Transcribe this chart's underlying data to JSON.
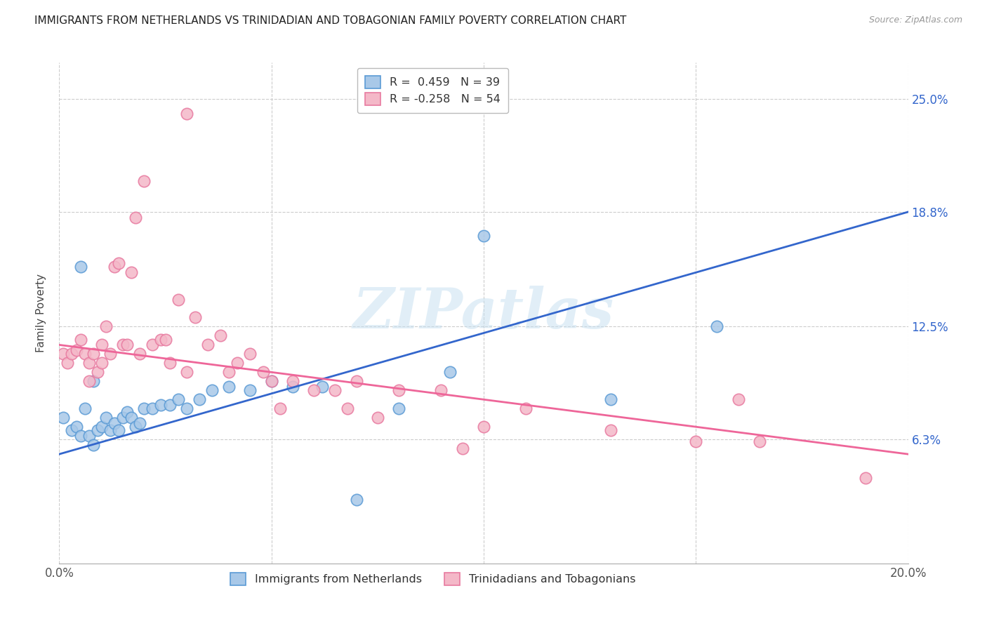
{
  "title": "IMMIGRANTS FROM NETHERLANDS VS TRINIDADIAN AND TOBAGONIAN FAMILY POVERTY CORRELATION CHART",
  "source": "Source: ZipAtlas.com",
  "ylabel": "Family Poverty",
  "xlim": [
    0.0,
    0.2
  ],
  "ylim": [
    -0.005,
    0.27
  ],
  "yticks": [
    0.063,
    0.125,
    0.188,
    0.25
  ],
  "ytick_labels": [
    "6.3%",
    "12.5%",
    "18.8%",
    "25.0%"
  ],
  "xticks": [
    0.0,
    0.05,
    0.1,
    0.15,
    0.2
  ],
  "xtick_labels": [
    "0.0%",
    "",
    "",
    "",
    "20.0%"
  ],
  "legend1_label": "R =  0.459   N = 39",
  "legend2_label": "R = -0.258   N = 54",
  "blue_color": "#a8c8e8",
  "pink_color": "#f4b8c8",
  "blue_edge_color": "#5b9bd5",
  "pink_edge_color": "#e87aa0",
  "blue_line_color": "#3366cc",
  "pink_line_color": "#ee6699",
  "watermark": "ZIPatlas",
  "blue_line_x0": 0.0,
  "blue_line_y0": 0.055,
  "blue_line_x1": 0.2,
  "blue_line_y1": 0.188,
  "pink_line_x0": 0.0,
  "pink_line_y0": 0.115,
  "pink_line_x1": 0.2,
  "pink_line_y1": 0.055,
  "blue_scatter_x": [
    0.001,
    0.003,
    0.004,
    0.005,
    0.006,
    0.007,
    0.008,
    0.009,
    0.01,
    0.011,
    0.012,
    0.013,
    0.014,
    0.015,
    0.016,
    0.017,
    0.018,
    0.019,
    0.02,
    0.022,
    0.024,
    0.026,
    0.028,
    0.03,
    0.033,
    0.036,
    0.04,
    0.045,
    0.05,
    0.055,
    0.062,
    0.07,
    0.08,
    0.092,
    0.1,
    0.13,
    0.155,
    0.005,
    0.008
  ],
  "blue_scatter_y": [
    0.075,
    0.068,
    0.07,
    0.065,
    0.08,
    0.065,
    0.06,
    0.068,
    0.07,
    0.075,
    0.068,
    0.072,
    0.068,
    0.075,
    0.078,
    0.075,
    0.07,
    0.072,
    0.08,
    0.08,
    0.082,
    0.082,
    0.085,
    0.08,
    0.085,
    0.09,
    0.092,
    0.09,
    0.095,
    0.092,
    0.092,
    0.03,
    0.08,
    0.1,
    0.175,
    0.085,
    0.125,
    0.158,
    0.095
  ],
  "pink_scatter_x": [
    0.001,
    0.002,
    0.003,
    0.004,
    0.005,
    0.006,
    0.007,
    0.007,
    0.008,
    0.009,
    0.01,
    0.01,
    0.011,
    0.012,
    0.013,
    0.014,
    0.015,
    0.016,
    0.017,
    0.018,
    0.019,
    0.02,
    0.022,
    0.024,
    0.025,
    0.026,
    0.028,
    0.03,
    0.032,
    0.035,
    0.038,
    0.04,
    0.042,
    0.045,
    0.048,
    0.05,
    0.052,
    0.055,
    0.06,
    0.065,
    0.068,
    0.07,
    0.075,
    0.08,
    0.09,
    0.095,
    0.1,
    0.11,
    0.13,
    0.15,
    0.16,
    0.165,
    0.19,
    0.03
  ],
  "pink_scatter_y": [
    0.11,
    0.105,
    0.11,
    0.112,
    0.118,
    0.11,
    0.095,
    0.105,
    0.11,
    0.1,
    0.115,
    0.105,
    0.125,
    0.11,
    0.158,
    0.16,
    0.115,
    0.115,
    0.155,
    0.185,
    0.11,
    0.205,
    0.115,
    0.118,
    0.118,
    0.105,
    0.14,
    0.1,
    0.13,
    0.115,
    0.12,
    0.1,
    0.105,
    0.11,
    0.1,
    0.095,
    0.08,
    0.095,
    0.09,
    0.09,
    0.08,
    0.095,
    0.075,
    0.09,
    0.09,
    0.058,
    0.07,
    0.08,
    0.068,
    0.062,
    0.085,
    0.062,
    0.042,
    0.242
  ]
}
